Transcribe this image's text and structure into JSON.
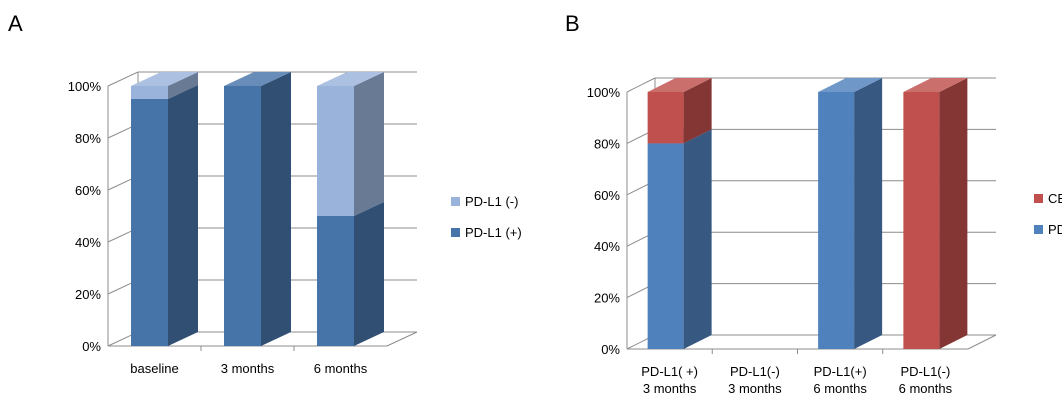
{
  "panels": [
    {
      "letter": "A"
    },
    {
      "letter": "B"
    }
  ],
  "chart_data": [
    {
      "type": "bar",
      "stacked": true,
      "three_d": true,
      "percent_stacked": true,
      "title": "",
      "xlabel": "",
      "ylabel": "",
      "ylim": [
        0,
        100
      ],
      "y_tick_labels": [
        "0%",
        "20%",
        "40%",
        "60%",
        "80%",
        "100%"
      ],
      "categories": [
        [
          "baseline"
        ],
        [
          "3 months"
        ],
        [
          "6 months"
        ]
      ],
      "series": [
        {
          "name": "PD-L1 (+)",
          "color": "#4674A8",
          "values": [
            95,
            100,
            50
          ]
        },
        {
          "name": "PD-L1 (-)",
          "color": "#9AB3DA",
          "values": [
            5,
            0,
            50
          ]
        }
      ],
      "legend": {
        "position": "right",
        "entries": [
          "PD-L1 (-)",
          "PD-L1 (+)"
        ]
      },
      "grid": true
    },
    {
      "type": "bar",
      "stacked": true,
      "three_d": true,
      "percent_stacked": true,
      "title": "",
      "xlabel": "",
      "ylabel": "",
      "ylim": [
        0,
        100
      ],
      "y_tick_labels": [
        "0%",
        "20%",
        "40%",
        "60%",
        "80%",
        "100%"
      ],
      "categories": [
        [
          "PD-L1( +)",
          "3 months"
        ],
        [
          "PD-L1(-)",
          "3 months"
        ],
        [
          "PD-L1(+)",
          "6 months"
        ],
        [
          "PD-L1(-)",
          "6 months"
        ]
      ],
      "series": [
        {
          "name": "PD",
          "color": "#4F81BD",
          "values": [
            80,
            0,
            100,
            0
          ]
        },
        {
          "name": "CB",
          "color": "#C0504D",
          "values": [
            20,
            0,
            0,
            100
          ]
        }
      ],
      "legend": {
        "position": "right",
        "entries": [
          "CB",
          "PD"
        ]
      },
      "grid": true
    }
  ]
}
